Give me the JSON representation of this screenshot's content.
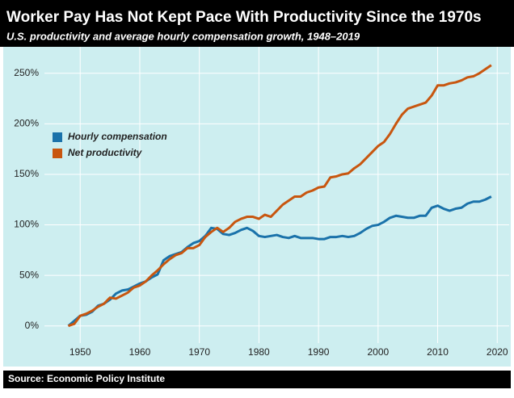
{
  "chart_data": {
    "type": "line",
    "title": "Worker Pay Has Not Kept Pace With Productivity Since the 1970s",
    "subtitle": "U.S. productivity and average hourly compensation growth, 1948–2019",
    "source": "Source: Economic Policy Institute",
    "x": [
      1948,
      1949,
      1950,
      1951,
      1952,
      1953,
      1954,
      1955,
      1956,
      1957,
      1958,
      1959,
      1960,
      1961,
      1962,
      1963,
      1964,
      1965,
      1966,
      1967,
      1968,
      1969,
      1970,
      1971,
      1972,
      1973,
      1974,
      1975,
      1976,
      1977,
      1978,
      1979,
      1980,
      1981,
      1982,
      1983,
      1984,
      1985,
      1986,
      1987,
      1988,
      1989,
      1990,
      1991,
      1992,
      1993,
      1994,
      1995,
      1996,
      1997,
      1998,
      1999,
      2000,
      2001,
      2002,
      2003,
      2004,
      2005,
      2006,
      2007,
      2008,
      2009,
      2010,
      2011,
      2012,
      2013,
      2014,
      2015,
      2016,
      2017,
      2018,
      2019
    ],
    "series": [
      {
        "name": "Hourly compensation",
        "color": "#1a72aa",
        "values": [
          0,
          5,
          10,
          11,
          14,
          20,
          22,
          26,
          32,
          35,
          36,
          39,
          42,
          44,
          48,
          51,
          65,
          69,
          71,
          73,
          78,
          82,
          84,
          89,
          97,
          96,
          91,
          90,
          92,
          95,
          97,
          94,
          89,
          88,
          89,
          90,
          88,
          87,
          89,
          87,
          87,
          87,
          86,
          86,
          88,
          88,
          89,
          88,
          89,
          92,
          96,
          99,
          100,
          103,
          107,
          109,
          108,
          107,
          107,
          109,
          109,
          117,
          119,
          116,
          114,
          116,
          117,
          121,
          123,
          123,
          125,
          128
        ]
      },
      {
        "name": "Net productivity",
        "color": "#c8560f",
        "values": [
          0,
          2,
          10,
          12,
          15,
          19,
          22,
          28,
          27,
          30,
          33,
          38,
          40,
          44,
          50,
          55,
          61,
          66,
          70,
          72,
          77,
          77,
          80,
          88,
          93,
          97,
          93,
          97,
          103,
          106,
          108,
          108,
          106,
          110,
          108,
          114,
          120,
          124,
          128,
          128,
          132,
          134,
          137,
          138,
          147,
          148,
          150,
          151,
          156,
          160,
          166,
          172,
          178,
          182,
          190,
          200,
          209,
          215,
          217,
          219,
          221,
          228,
          238,
          238,
          240,
          241,
          243,
          246,
          247,
          250,
          254,
          258
        ]
      }
    ],
    "xlim": [
      1944,
      2022
    ],
    "xticks": [
      1950,
      1960,
      1970,
      1980,
      1990,
      2000,
      2010,
      2020
    ],
    "ylim": [
      -17,
      273
    ],
    "yticks": [
      {
        "value": 0,
        "label": "0%"
      },
      {
        "value": 50,
        "label": "50%"
      },
      {
        "value": 100,
        "label": "100%"
      },
      {
        "value": 150,
        "label": "150%"
      },
      {
        "value": 200,
        "label": "200%"
      },
      {
        "value": 250,
        "label": "250%"
      }
    ],
    "grid": true,
    "legend": "upper left"
  }
}
